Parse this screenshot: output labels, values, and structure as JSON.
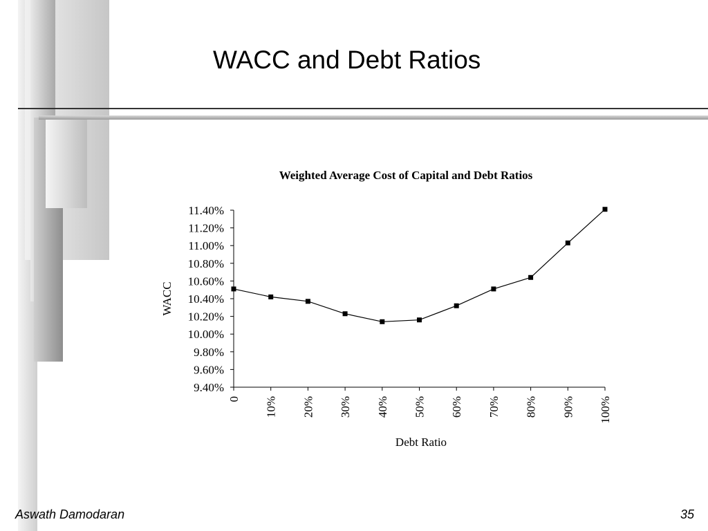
{
  "slide": {
    "title": "WACC and Debt Ratios",
    "author": "Aswath Damodaran",
    "page_number": "35"
  },
  "chart_data": {
    "type": "line",
    "title": "Weighted Average Cost of Capital and Debt Ratios",
    "xlabel": "Debt Ratio",
    "ylabel": "WACC",
    "categories": [
      "0",
      "10%",
      "20%",
      "30%",
      "40%",
      "50%",
      "60%",
      "70%",
      "80%",
      "90%",
      "100%"
    ],
    "values": [
      10.51,
      10.42,
      10.37,
      10.23,
      10.14,
      10.16,
      10.32,
      10.51,
      10.64,
      11.03,
      11.41
    ],
    "ylim": [
      9.4,
      11.4
    ],
    "yticks": [
      "11.40%",
      "11.20%",
      "11.00%",
      "10.80%",
      "10.60%",
      "10.40%",
      "10.20%",
      "10.00%",
      "9.80%",
      "9.60%",
      "9.40%"
    ],
    "grid": false,
    "legend": "none",
    "line_color": "#000000"
  }
}
